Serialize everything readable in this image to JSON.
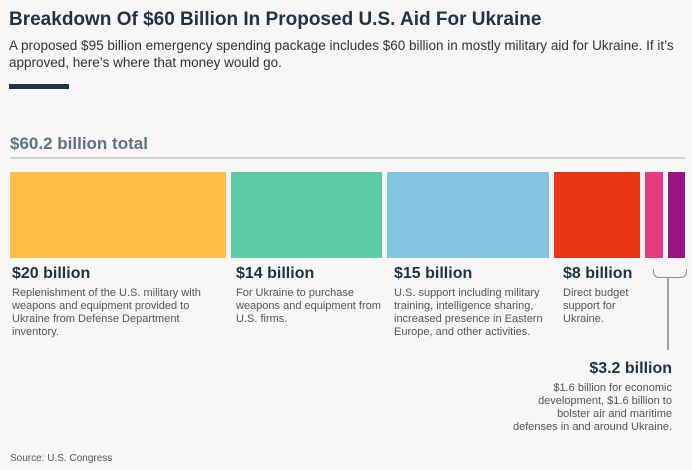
{
  "title": "Breakdown Of $60 Billion In Proposed U.S. Aid For Ukraine",
  "subtitle": "A proposed $95 billion emergency spending package includes $60 billion in mostly military aid for Ukraine. If it’s approved, here’s where that money would go.",
  "source": "Source: U.S. Congress",
  "chart_data": {
    "type": "bar",
    "title": "$60.2 billion total",
    "unit": "billion USD",
    "segments": [
      {
        "value": 20,
        "label": "$20 billion",
        "description": "Replenishment of the U.S. military with weapons and equipment provided to Ukraine from Defense Department inventory.",
        "color": "#ffbf47"
      },
      {
        "value": 14,
        "label": "$14 billion",
        "description": "For Ukraine to purchase weapons and equipment from U.S. firms.",
        "color": "#5ccca5"
      },
      {
        "value": 15,
        "label": "$15 billion",
        "description": "U.S. support including military training, intelligence sharing, increased presence in Eastern Europe, and other activities.",
        "color": "#84c6e2"
      },
      {
        "value": 8,
        "label": "$8 billion",
        "description": "Direct budget support for Ukraine.",
        "color": "#e83616"
      },
      {
        "value": 1.6,
        "color": "#e6397e"
      },
      {
        "value": 1.6,
        "color": "#9c1480"
      }
    ],
    "group": {
      "label": "$3.2 billion",
      "description": "$1.6 billion for economic development, $1.6 billion to bolster air and maritime defenses in and around Ukraine."
    }
  }
}
